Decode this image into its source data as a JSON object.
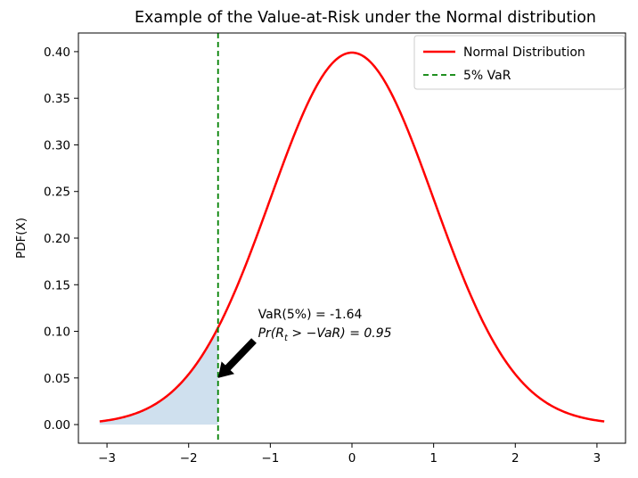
{
  "chart_data": {
    "type": "line",
    "title": "Example of the Value-at-Risk under the Normal distribution",
    "xlabel": "",
    "ylabel": "PDF(X)",
    "xlim": [
      -3.35,
      3.35
    ],
    "ylim": [
      -0.02,
      0.42
    ],
    "x_ticks": [
      -3,
      -2,
      -1,
      0,
      1,
      2,
      3
    ],
    "x_tick_labels": [
      "−3",
      "−2",
      "−1",
      "0",
      "1",
      "2",
      "3"
    ],
    "y_ticks": [
      0.0,
      0.05,
      0.1,
      0.15,
      0.2,
      0.25,
      0.3,
      0.35,
      0.4
    ],
    "y_tick_labels": [
      "0.00",
      "0.05",
      "0.10",
      "0.15",
      "0.20",
      "0.25",
      "0.30",
      "0.35",
      "0.40"
    ],
    "grid": false,
    "legend_position": "top-right",
    "series": [
      {
        "name": "Normal Distribution",
        "kind": "normal_pdf",
        "mean": 0,
        "std": 1,
        "x_range": [
          -3.09,
          3.09
        ],
        "color": "#ff0000",
        "line_style": "solid"
      },
      {
        "name": "5% VaR",
        "kind": "vline",
        "x": -1.64,
        "color": "#008000",
        "line_style": "dashed"
      }
    ],
    "shaded_region": {
      "x_range": [
        -3.09,
        -1.64
      ],
      "color": "#cfe0ee"
    },
    "annotation": {
      "line1": "VaR(5%) = -1.64",
      "line2_prefix": "Pr(",
      "line2_sub_base": "R",
      "line2_sub": "t",
      "line2_suffix": " > −VaR) = 0.95",
      "text_xy": [
        -1.15,
        0.095
      ],
      "arrow_tail_xy": [
        -1.2,
        0.09
      ],
      "arrow_head_xy": [
        -1.64,
        0.05
      ]
    }
  }
}
